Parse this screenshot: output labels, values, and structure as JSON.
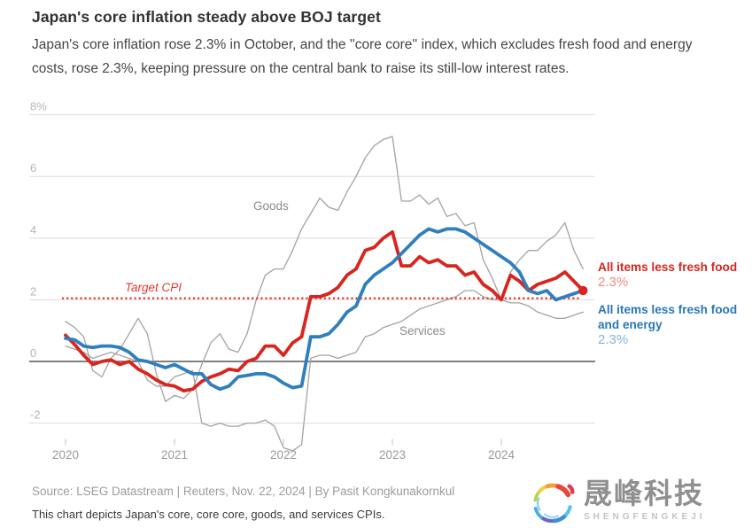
{
  "header": {
    "title": "Japan's core inflation steady above BOJ target",
    "subtitle": "Japan's core inflation rose 2.3% in October, and the ''core core'' index, which excludes fresh food and energy costs, rose 2.3%, keeping pressure on the central bank to raise its still-low interest rates."
  },
  "chart_data": {
    "type": "line",
    "title": "Japan's core inflation steady above BOJ target",
    "x_axis": {
      "start": "2020-01",
      "frequency": "monthly",
      "ticks": [
        "2020",
        "2021",
        "2022",
        "2023",
        "2024"
      ]
    },
    "y_axis": {
      "unit": "%",
      "ylim": [
        -3.2,
        8.6
      ],
      "ticks": [
        {
          "value": 8,
          "label": "8%"
        },
        {
          "value": 6,
          "label": "6"
        },
        {
          "value": 4,
          "label": "4"
        },
        {
          "value": 2,
          "label": "2"
        },
        {
          "value": 0,
          "label": "0"
        },
        {
          "value": -2,
          "label": "-2"
        }
      ]
    },
    "grid": true,
    "target_line": {
      "label": "Target CPI",
      "value": 2,
      "color": "#e8281e",
      "style": "dotted"
    },
    "annotations": {
      "goods": "Goods",
      "services": "Services"
    },
    "series": [
      {
        "name": "Goods",
        "role": "context",
        "color": "#a3a3a3",
        "values": [
          1.3,
          1.1,
          0.8,
          -0.3,
          -0.5,
          0.1,
          0.4,
          0.9,
          1.4,
          0.9,
          -0.4,
          -1.3,
          -1.1,
          -1.2,
          -0.9,
          -0.1,
          0.6,
          0.9,
          0.4,
          0.3,
          0.9,
          2.0,
          2.8,
          3.0,
          3.0,
          3.6,
          4.3,
          4.8,
          5.3,
          5.0,
          4.9,
          5.5,
          6.0,
          6.6,
          7.0,
          7.2,
          7.3,
          5.2,
          5.2,
          5.4,
          5.1,
          5.3,
          4.7,
          4.8,
          4.4,
          4.5,
          3.3,
          2.7,
          2.0,
          2.9,
          3.3,
          3.6,
          3.6,
          3.9,
          4.1,
          4.5,
          3.6,
          3.0
        ]
      },
      {
        "name": "Services",
        "role": "context",
        "color": "#a3a3a3",
        "values": [
          0.5,
          0.4,
          0.3,
          0.1,
          0.2,
          0.3,
          0.2,
          0.1,
          0.0,
          -0.6,
          -0.8,
          -0.8,
          -0.5,
          -0.4,
          -0.3,
          -2.0,
          -2.1,
          -2.0,
          -2.1,
          -2.1,
          -2.0,
          -2.0,
          -1.9,
          -2.1,
          -2.8,
          -2.9,
          -2.7,
          0.1,
          0.2,
          0.2,
          0.1,
          0.2,
          0.3,
          0.8,
          0.9,
          1.1,
          1.2,
          1.3,
          1.5,
          1.7,
          1.8,
          1.9,
          2.0,
          2.1,
          2.3,
          2.3,
          2.1,
          2.0,
          2.0,
          1.9,
          1.9,
          1.8,
          1.6,
          1.5,
          1.4,
          1.4,
          1.5,
          1.6
        ]
      },
      {
        "name": "All items less fresh food",
        "role": "main",
        "color": "#d8251d",
        "values": [
          0.85,
          0.55,
          0.2,
          -0.1,
          0.0,
          0.05,
          -0.1,
          0.0,
          -0.25,
          -0.4,
          -0.6,
          -0.75,
          -0.8,
          -0.95,
          -0.9,
          -0.65,
          -0.5,
          -0.4,
          -0.25,
          -0.3,
          0.0,
          0.1,
          0.5,
          0.5,
          0.2,
          0.6,
          0.8,
          2.1,
          2.1,
          2.2,
          2.4,
          2.8,
          3.0,
          3.6,
          3.7,
          4.0,
          4.2,
          3.1,
          3.1,
          3.4,
          3.2,
          3.3,
          3.1,
          3.1,
          2.8,
          2.9,
          2.5,
          2.3,
          2.0,
          2.8,
          2.6,
          2.3,
          2.5,
          2.6,
          2.7,
          2.9,
          2.6,
          2.3
        ]
      },
      {
        "name": "All items less fresh food and energy",
        "role": "main",
        "color": "#2f7fbe",
        "values": [
          0.75,
          0.7,
          0.5,
          0.45,
          0.5,
          0.5,
          0.45,
          0.3,
          0.05,
          0.0,
          -0.1,
          -0.2,
          -0.1,
          -0.25,
          -0.4,
          -0.4,
          -0.75,
          -0.9,
          -0.8,
          -0.5,
          -0.45,
          -0.4,
          -0.4,
          -0.5,
          -0.7,
          -0.85,
          -0.8,
          0.8,
          0.8,
          0.9,
          1.2,
          1.6,
          1.8,
          2.5,
          2.8,
          3.0,
          3.2,
          3.5,
          3.8,
          4.1,
          4.3,
          4.2,
          4.3,
          4.3,
          4.2,
          4.0,
          3.8,
          3.6,
          3.4,
          3.2,
          2.9,
          2.3,
          2.2,
          2.3,
          2.0,
          2.1,
          2.2,
          2.3
        ]
      }
    ],
    "end_marker": {
      "series": "All items less fresh food",
      "shape": "dot"
    }
  },
  "legend": {
    "core": {
      "label": "All items less fresh food",
      "value": "2.3%",
      "color": "#d8251d"
    },
    "core_core": {
      "label": "All items less fresh food and energy",
      "value": "2.3%",
      "color": "#2878b8"
    }
  },
  "footer": {
    "source": "Source: LSEG Datastream | Reuters, Nov. 22, 2024 | By Pasit Kongkunakornkul",
    "caption": "This chart depicts Japan's core, core core, goods, and services CPIs."
  },
  "logo": {
    "text": "晟峰科技",
    "subtext": "SHENGFENGKEJI",
    "colors": [
      "#b5d44a",
      "#f0cf43",
      "#f49f38",
      "#e8463a",
      "#e23c4e",
      "#56c4ea",
      "#3f8fd8",
      "#6b66c9",
      "#4aaede"
    ]
  }
}
